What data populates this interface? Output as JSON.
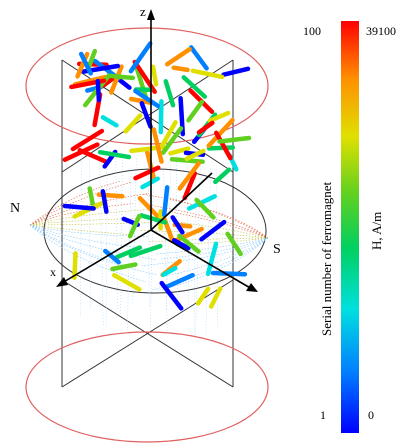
{
  "axes": {
    "z": "z",
    "x": "x"
  },
  "poles": {
    "north": "N",
    "south": "S"
  },
  "colorbar": {
    "left_label": "Serial number of ferromagnet",
    "right_label": "H, A/m",
    "left_top": "100",
    "left_bottom": "1",
    "right_top": "39100",
    "right_bottom": "0",
    "colors": [
      "#0000ff",
      "#0080ff",
      "#00e0e0",
      "#00d060",
      "#60d020",
      "#e0e000",
      "#ff9000",
      "#ff0000"
    ]
  },
  "colors": {
    "frame": "#333333",
    "ellipse": "#e06060",
    "field_lines": "#80c8ff"
  }
}
